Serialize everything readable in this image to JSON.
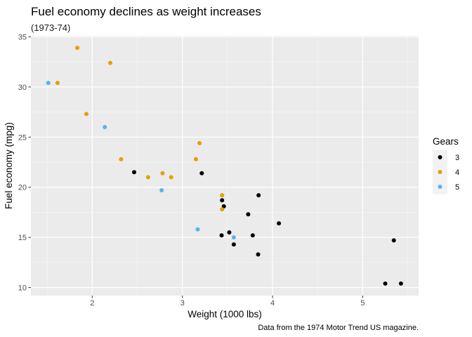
{
  "chart_data": {
    "type": "scatter",
    "title": "Fuel economy declines as weight increases",
    "subtitle": "(1973-74)",
    "caption": "Data from the 1974 Motor Trend US magazine.",
    "xlabel": "Weight (1000 lbs)",
    "ylabel": "Fuel economy (mpg)",
    "xlim": [
      1.32,
      5.62
    ],
    "ylim": [
      9.2,
      35.1
    ],
    "xticks": [
      2,
      3,
      4,
      5
    ],
    "yticks": [
      10,
      15,
      20,
      25,
      30,
      35
    ],
    "grid": true,
    "legend": {
      "title": "Gears",
      "position": "right"
    },
    "series": [
      {
        "name": "3",
        "color": "#000000",
        "points": [
          [
            3.215,
            21.4
          ],
          [
            3.44,
            18.7
          ],
          [
            3.46,
            18.1
          ],
          [
            3.57,
            14.3
          ],
          [
            4.07,
            16.4
          ],
          [
            3.73,
            17.3
          ],
          [
            3.78,
            15.2
          ],
          [
            5.25,
            10.4
          ],
          [
            5.424,
            10.4
          ],
          [
            5.345,
            14.7
          ],
          [
            2.465,
            21.5
          ],
          [
            3.52,
            15.5
          ],
          [
            3.435,
            15.2
          ],
          [
            3.84,
            13.3
          ],
          [
            3.845,
            19.2
          ]
        ]
      },
      {
        "name": "4",
        "color": "#E69F00",
        "points": [
          [
            2.62,
            21.0
          ],
          [
            2.875,
            21.0
          ],
          [
            2.32,
            22.8
          ],
          [
            3.19,
            24.4
          ],
          [
            3.15,
            22.8
          ],
          [
            3.44,
            19.2
          ],
          [
            3.44,
            17.8
          ],
          [
            2.2,
            32.4
          ],
          [
            1.615,
            30.4
          ],
          [
            1.835,
            33.9
          ],
          [
            1.935,
            27.3
          ],
          [
            2.78,
            21.4
          ]
        ]
      },
      {
        "name": "5",
        "color": "#56B4E9",
        "points": [
          [
            2.14,
            26.0
          ],
          [
            1.513,
            30.4
          ],
          [
            3.17,
            15.8
          ],
          [
            2.77,
            19.7
          ],
          [
            3.57,
            15.0
          ]
        ]
      }
    ]
  }
}
